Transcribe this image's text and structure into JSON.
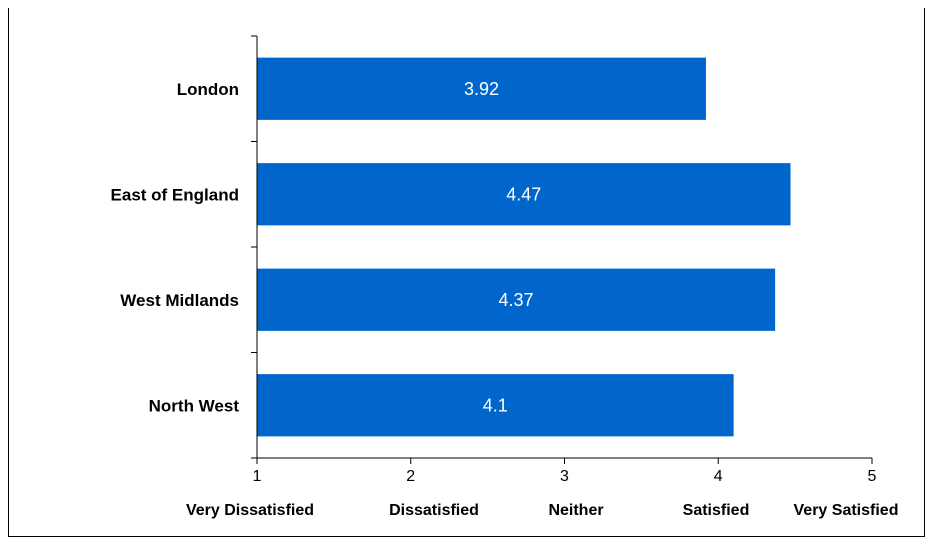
{
  "chart_data": {
    "type": "bar",
    "orientation": "horizontal",
    "categories": [
      "London",
      "East of England",
      "West Midlands",
      "North West"
    ],
    "values": [
      3.92,
      4.47,
      4.37,
      4.1
    ],
    "data_labels": [
      "3.92",
      "4.47",
      "4.37",
      "4.1"
    ],
    "xlim": [
      1,
      5
    ],
    "x_ticks": [
      1,
      2,
      3,
      4,
      5
    ],
    "x_tick_labels": [
      "Very Dissatisfied",
      "Dissatisfied",
      "Neither",
      "Satisfied",
      "Very Satisfied"
    ],
    "title": "",
    "xlabel": "",
    "ylabel": "",
    "grid": false,
    "legend": "none",
    "bar_color": "#0066CC",
    "label_color": "#FFFFFF"
  }
}
